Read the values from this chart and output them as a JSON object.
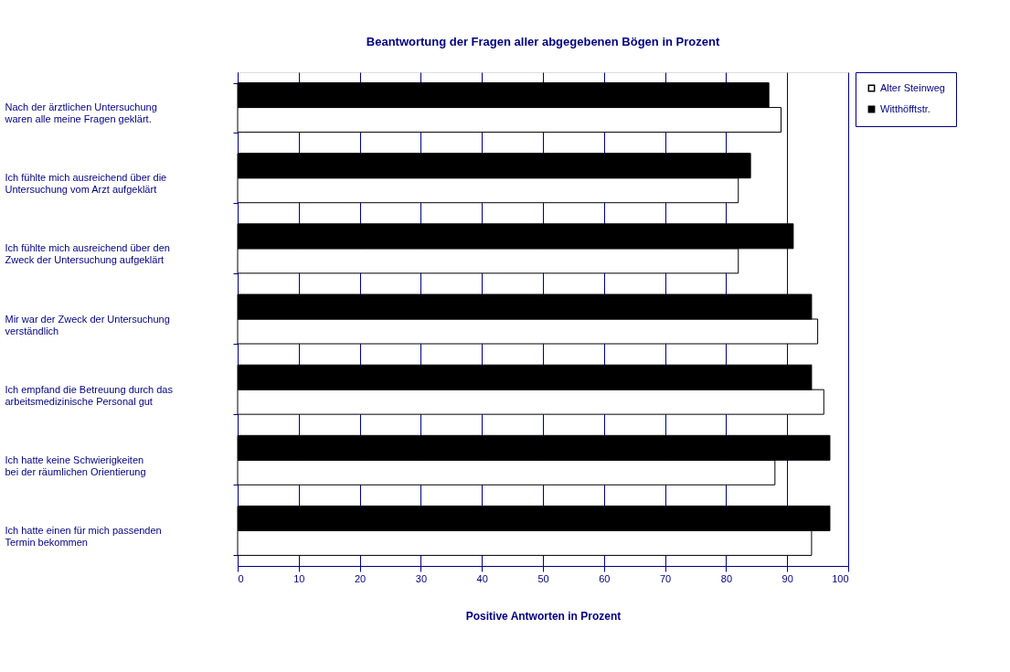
{
  "chart_data": {
    "type": "bar",
    "orientation": "horizontal",
    "title": "Beantwortung der Fragen aller abgegebenen Bögen in Prozent",
    "xlabel": "Positive Antworten in Prozent",
    "categories": [
      "Nach der ärztlichen Untersuchung\nwaren alle meine Fragen geklärt.",
      "Ich fühlte mich ausreichend über die\nUntersuchung vom Arzt aufgeklärt",
      "Ich fühlte mich ausreichend über den\nZweck der Untersuchung aufgeklärt",
      "Mir war der Zweck der Untersuchung\nverständlich",
      "Ich empfand die Betreuung durch das\narbeitsmedizinische Personal gut",
      "Ich hatte keine Schwierigkeiten\nbei der räumlichen Orientierung",
      "Ich hatte einen für mich passenden\nTermin bekommen"
    ],
    "series": [
      {
        "name": "Alter Steinweg",
        "color": "#ffffff",
        "values": [
          89,
          82,
          82,
          95,
          96,
          88,
          94
        ]
      },
      {
        "name": "Witthöfftstr.",
        "color": "#000000",
        "values": [
          87,
          84,
          91,
          94,
          94,
          97,
          97
        ]
      }
    ],
    "xlim": [
      0,
      100
    ],
    "xticks": [
      0,
      10,
      20,
      30,
      40,
      50,
      60,
      70,
      80,
      90,
      100
    ],
    "grid": "x",
    "legend": "right"
  }
}
